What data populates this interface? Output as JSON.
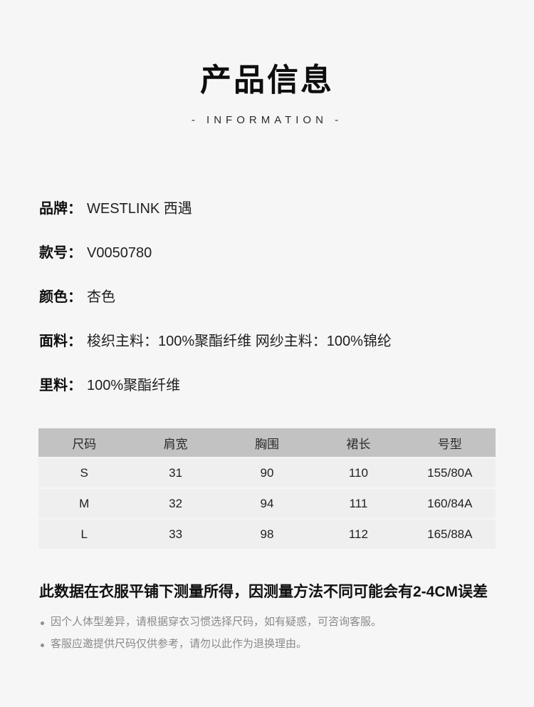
{
  "page": {
    "background_color": "#f6f6f6"
  },
  "header": {
    "title": "产品信息",
    "subtitle": "- INFORMATION -"
  },
  "details": [
    {
      "label": "品牌：",
      "value": "WESTLINK 西遇"
    },
    {
      "label": "款号：",
      "value": "V0050780"
    },
    {
      "label": "颜色：",
      "value": "杏色"
    },
    {
      "label": "面料：",
      "value": "梭织主料：100%聚酯纤维 网纱主料：100%锦纶"
    },
    {
      "label": "里料：",
      "value": "100%聚酯纤维"
    }
  ],
  "size_table": {
    "header_bg_color": "#c2c2c2",
    "row_bg_color": "#efefef",
    "headers": [
      "尺码",
      "肩宽",
      "胸围",
      "裙长",
      "号型"
    ],
    "rows": [
      [
        "S",
        "31",
        "90",
        "110",
        "155/80A"
      ],
      [
        "M",
        "32",
        "94",
        "111",
        "160/84A"
      ],
      [
        "L",
        "33",
        "98",
        "112",
        "165/88A"
      ]
    ]
  },
  "notes": {
    "highlight": "此数据在衣服平铺下测量所得，因测量方法不同可能会有2-4CM误差",
    "items": [
      "因个人体型差异，请根据穿衣习惯选择尺码，如有疑惑，可咨询客服。",
      "客服应邀提供尺码仅供参考，请勿以此作为退换理由。"
    ]
  }
}
